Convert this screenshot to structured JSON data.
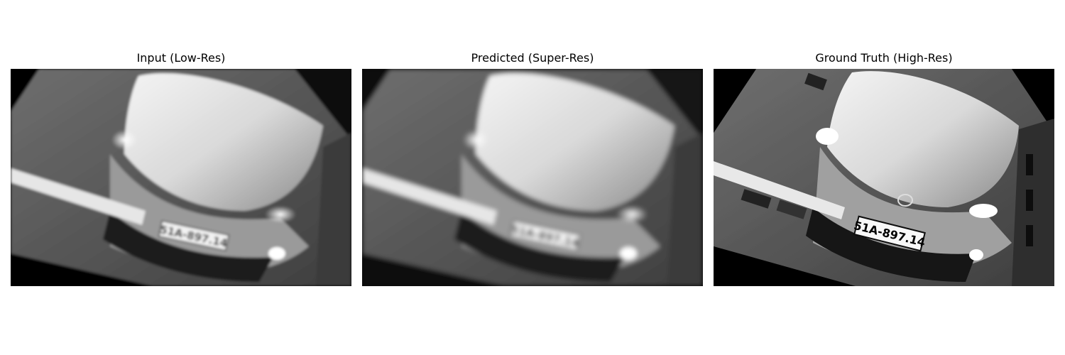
{
  "panels": [
    {
      "title": "Input (Low-Res)",
      "plate_text": "51A-897.14",
      "quality": "low"
    },
    {
      "title": "Predicted (Super-Res)",
      "plate_text": "51A-897.14",
      "quality": "predicted"
    },
    {
      "title": "Ground Truth (High-Res)",
      "plate_text": "51A-897.14",
      "quality": "high"
    }
  ]
}
